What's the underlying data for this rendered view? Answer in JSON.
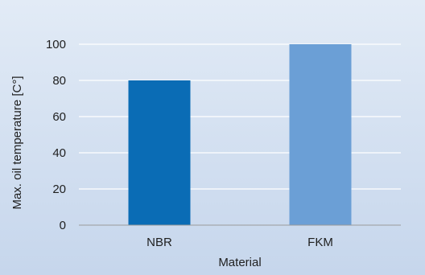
{
  "chart_data": {
    "type": "bar",
    "categories": [
      "NBR",
      "FKM"
    ],
    "values": [
      80,
      100
    ],
    "bar_colors": [
      "#0a6cb5",
      "#6b9fd6"
    ],
    "title": "",
    "xlabel": "Material",
    "ylabel": "Max. oil temperature [C°]",
    "ylim": [
      0,
      100
    ],
    "yticks": [
      0,
      20,
      40,
      60,
      80,
      100
    ],
    "grid": true,
    "grid_color": "#ffffff",
    "background_color": "#d3e0f1",
    "legend": "none"
  }
}
